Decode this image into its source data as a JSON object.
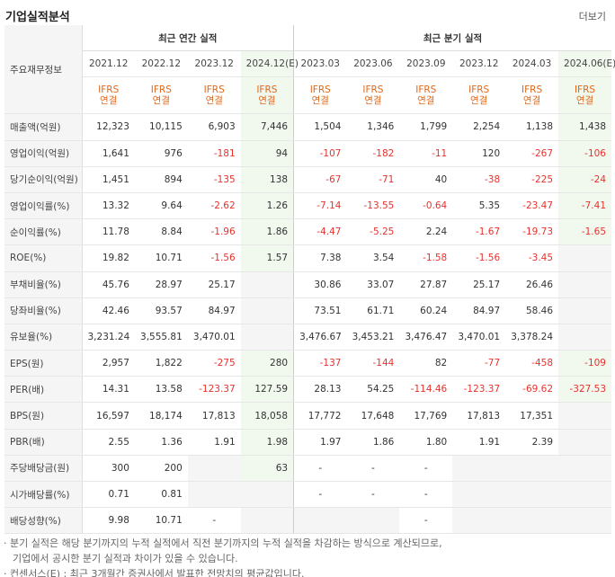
{
  "title": "기업실적분석",
  "more": "더보기",
  "rowhead": "주요재무정보",
  "annual_title": "최근 연간 실적",
  "quarter_title": "최근 분기 실적",
  "periods": [
    "2021.12",
    "2022.12",
    "2023.12",
    "2024.12(E)",
    "2023.03",
    "2023.06",
    "2023.09",
    "2023.12",
    "2024.03",
    "2024.06(E)"
  ],
  "basis_top": "IFRS",
  "basis_bottom": "연결",
  "rows": [
    {
      "label": "매출액(억원)",
      "v": [
        "12,323",
        "10,115",
        "6,903",
        "7,446",
        "1,504",
        "1,346",
        "1,799",
        "2,254",
        "1,138",
        "1,438"
      ]
    },
    {
      "label": "영업이익(억원)",
      "v": [
        "1,641",
        "976",
        "-181",
        "94",
        "-107",
        "-182",
        "-11",
        "120",
        "-267",
        "-106"
      ]
    },
    {
      "label": "당기순이익(억원)",
      "v": [
        "1,451",
        "894",
        "-135",
        "138",
        "-67",
        "-71",
        "40",
        "-38",
        "-225",
        "-24"
      ]
    },
    {
      "label": "영업이익률(%)",
      "v": [
        "13.32",
        "9.64",
        "-2.62",
        "1.26",
        "-7.14",
        "-13.55",
        "-0.64",
        "5.35",
        "-23.47",
        "-7.41"
      ]
    },
    {
      "label": "순이익률(%)",
      "v": [
        "11.78",
        "8.84",
        "-1.96",
        "1.86",
        "-4.47",
        "-5.25",
        "2.24",
        "-1.67",
        "-19.73",
        "-1.65"
      ]
    },
    {
      "label": "ROE(%)",
      "v": [
        "19.82",
        "10.71",
        "-1.56",
        "1.57",
        "7.38",
        "3.54",
        "-1.58",
        "-1.56",
        "-3.45",
        ""
      ]
    },
    {
      "label": "부채비율(%)",
      "v": [
        "45.76",
        "28.97",
        "25.17",
        "",
        "30.86",
        "33.07",
        "27.87",
        "25.17",
        "26.46",
        ""
      ]
    },
    {
      "label": "당좌비율(%)",
      "v": [
        "42.46",
        "93.57",
        "84.97",
        "",
        "73.51",
        "61.71",
        "60.24",
        "84.97",
        "58.46",
        ""
      ]
    },
    {
      "label": "유보율(%)",
      "v": [
        "3,231.24",
        "3,555.81",
        "3,470.01",
        "",
        "3,476.67",
        "3,453.21",
        "3,476.47",
        "3,470.01",
        "3,378.24",
        ""
      ]
    },
    {
      "label": "EPS(원)",
      "v": [
        "2,957",
        "1,822",
        "-275",
        "280",
        "-137",
        "-144",
        "82",
        "-77",
        "-458",
        "-109"
      ]
    },
    {
      "label": "PER(배)",
      "v": [
        "14.31",
        "13.58",
        "-123.37",
        "127.59",
        "28.13",
        "54.25",
        "-114.46",
        "-123.37",
        "-69.62",
        "-327.53"
      ]
    },
    {
      "label": "BPS(원)",
      "v": [
        "16,597",
        "18,174",
        "17,813",
        "18,058",
        "17,772",
        "17,648",
        "17,769",
        "17,813",
        "17,351",
        ""
      ]
    },
    {
      "label": "PBR(배)",
      "v": [
        "2.55",
        "1.36",
        "1.91",
        "1.98",
        "1.97",
        "1.86",
        "1.80",
        "1.91",
        "2.39",
        ""
      ]
    },
    {
      "label": "주당배당금(원)",
      "v": [
        "300",
        "200",
        "",
        "63",
        "-",
        "-",
        "-",
        "",
        "",
        ""
      ]
    },
    {
      "label": "시가배당률(%)",
      "v": [
        "0.71",
        "0.81",
        "",
        "",
        "-",
        "-",
        "-",
        "",
        "",
        ""
      ]
    },
    {
      "label": "배당성향(%)",
      "v": [
        "9.98",
        "10.71",
        "-",
        "",
        "",
        "",
        "-",
        "",
        "",
        ""
      ]
    }
  ],
  "footnotes": [
    "· 분기 실적은 해당 분기까지의 누적 실적에서 직전 분기까지의 누적 실적을 차감하는 방식으로 계산되므로,",
    "  기업에서 공시한 분기 실적과 차이가 있을 수 있습니다.",
    "· 컨센서스(E) : 최근 3개월간 증권사에서 발표한 전망치의 평균값입니다."
  ]
}
